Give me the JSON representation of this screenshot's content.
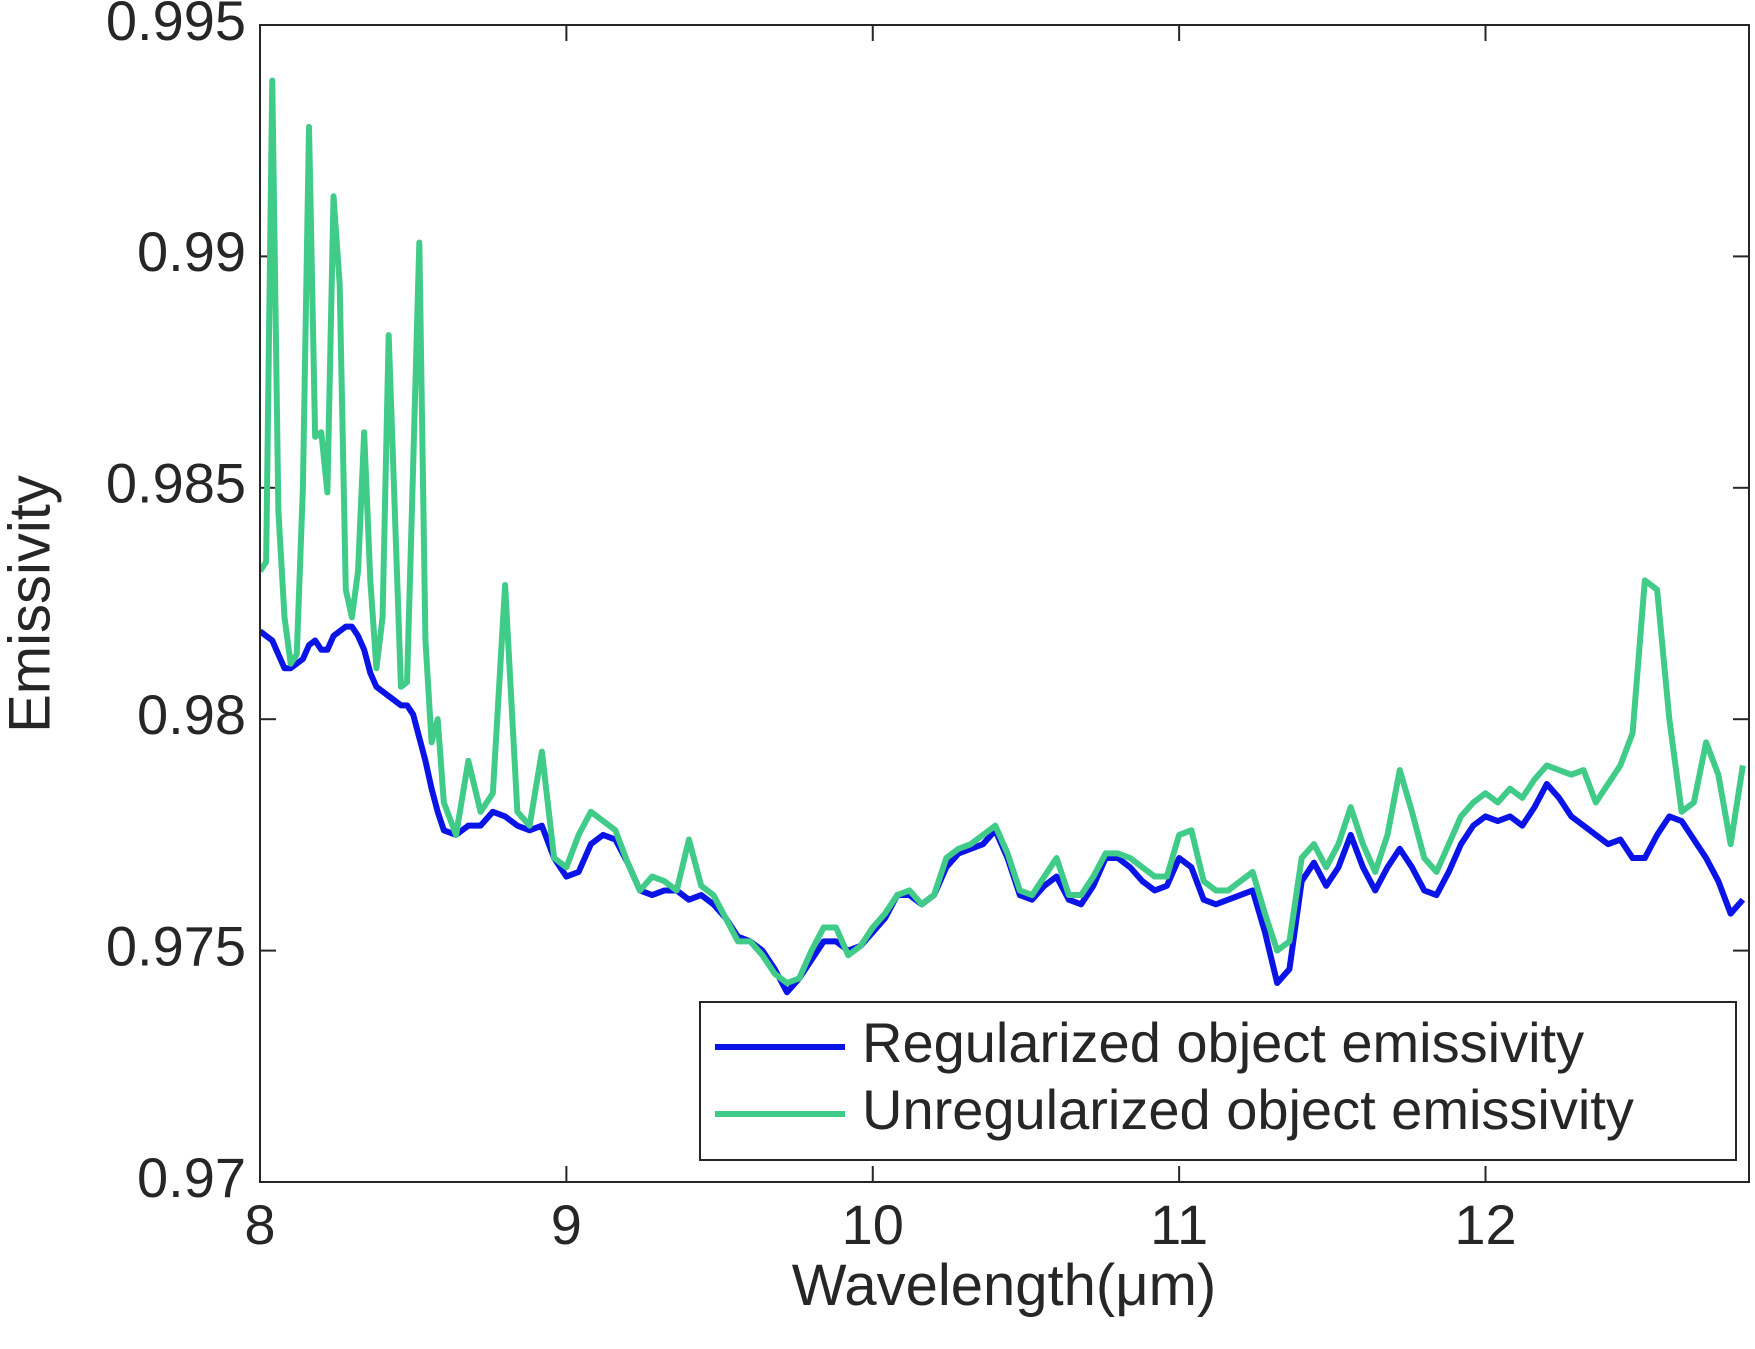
{
  "chart_data": {
    "type": "line",
    "x_label": "Wavelength(μm)",
    "y_label": "Emissivity",
    "x": [
      8.0,
      8.02,
      8.04,
      8.06,
      8.08,
      8.1,
      8.12,
      8.14,
      8.16,
      8.18,
      8.2,
      8.22,
      8.24,
      8.26,
      8.28,
      8.3,
      8.32,
      8.34,
      8.36,
      8.38,
      8.4,
      8.42,
      8.44,
      8.46,
      8.48,
      8.5,
      8.52,
      8.54,
      8.56,
      8.58,
      8.6,
      8.64,
      8.68,
      8.72,
      8.76,
      8.8,
      8.84,
      8.88,
      8.92,
      8.96,
      9.0,
      9.04,
      9.08,
      9.12,
      9.16,
      9.2,
      9.24,
      9.28,
      9.32,
      9.36,
      9.4,
      9.44,
      9.48,
      9.52,
      9.56,
      9.6,
      9.64,
      9.68,
      9.72,
      9.76,
      9.8,
      9.84,
      9.88,
      9.92,
      9.96,
      10.0,
      10.04,
      10.08,
      10.12,
      10.16,
      10.2,
      10.24,
      10.28,
      10.32,
      10.36,
      10.4,
      10.44,
      10.48,
      10.52,
      10.56,
      10.6,
      10.64,
      10.68,
      10.72,
      10.76,
      10.8,
      10.84,
      10.88,
      10.92,
      10.96,
      11.0,
      11.04,
      11.08,
      11.12,
      11.16,
      11.2,
      11.24,
      11.28,
      11.32,
      11.36,
      11.4,
      11.44,
      11.48,
      11.52,
      11.56,
      11.6,
      11.64,
      11.68,
      11.72,
      11.76,
      11.8,
      11.84,
      11.88,
      11.92,
      11.96,
      12.0,
      12.04,
      12.08,
      12.12,
      12.16,
      12.2,
      12.24,
      12.28,
      12.32,
      12.36,
      12.4,
      12.44,
      12.48,
      12.52,
      12.56,
      12.6,
      12.64,
      12.68,
      12.72,
      12.76,
      12.8,
      12.84
    ],
    "series": [
      {
        "name": "Regularized object emissivity",
        "color": "#0a14e6",
        "values": [
          0.9819,
          0.9818,
          0.9817,
          0.9814,
          0.9811,
          0.9811,
          0.9812,
          0.9813,
          0.9816,
          0.9817,
          0.9815,
          0.9815,
          0.9818,
          0.9819,
          0.982,
          0.982,
          0.9818,
          0.9815,
          0.981,
          0.9807,
          0.9806,
          0.9805,
          0.9804,
          0.9803,
          0.9803,
          0.9801,
          0.9796,
          0.9791,
          0.9785,
          0.978,
          0.9776,
          0.9775,
          0.9777,
          0.9777,
          0.978,
          0.9779,
          0.9777,
          0.9776,
          0.9777,
          0.977,
          0.9766,
          0.9767,
          0.9773,
          0.9775,
          0.9774,
          0.9769,
          0.9763,
          0.9762,
          0.9763,
          0.9763,
          0.9761,
          0.9762,
          0.976,
          0.9757,
          0.9753,
          0.9752,
          0.975,
          0.9746,
          0.9741,
          0.9744,
          0.9748,
          0.9752,
          0.9752,
          0.975,
          0.9751,
          0.9754,
          0.9757,
          0.9762,
          0.9762,
          0.976,
          0.9762,
          0.9768,
          0.9771,
          0.9772,
          0.9773,
          0.9776,
          0.977,
          0.9762,
          0.9761,
          0.9764,
          0.9766,
          0.9761,
          0.976,
          0.9764,
          0.977,
          0.977,
          0.9768,
          0.9765,
          0.9763,
          0.9764,
          0.977,
          0.9768,
          0.9761,
          0.976,
          0.9761,
          0.9762,
          0.9763,
          0.9754,
          0.9743,
          0.9746,
          0.9765,
          0.9769,
          0.9764,
          0.9768,
          0.9775,
          0.9768,
          0.9763,
          0.9768,
          0.9772,
          0.9768,
          0.9763,
          0.9762,
          0.9767,
          0.9773,
          0.9777,
          0.9779,
          0.9778,
          0.9779,
          0.9777,
          0.9781,
          0.9786,
          0.9783,
          0.9779,
          0.9777,
          0.9775,
          0.9773,
          0.9774,
          0.977,
          0.977,
          0.9775,
          0.9779,
          0.9778,
          0.9774,
          0.977,
          0.9765,
          0.9758,
          0.9761
        ]
      },
      {
        "name": "Unregularized object emissivity",
        "color": "#40cc88",
        "values": [
          0.9832,
          0.9834,
          0.9938,
          0.9845,
          0.9822,
          0.9812,
          0.9814,
          0.985,
          0.9928,
          0.9861,
          0.9862,
          0.9849,
          0.9913,
          0.9894,
          0.9828,
          0.9822,
          0.9832,
          0.9862,
          0.983,
          0.9811,
          0.9822,
          0.9883,
          0.9845,
          0.9807,
          0.9808,
          0.9855,
          0.9903,
          0.9817,
          0.9795,
          0.98,
          0.9782,
          0.9775,
          0.9791,
          0.978,
          0.9784,
          0.9829,
          0.978,
          0.9777,
          0.9793,
          0.977,
          0.9768,
          0.9775,
          0.978,
          0.9778,
          0.9776,
          0.9769,
          0.9763,
          0.9766,
          0.9765,
          0.9763,
          0.9774,
          0.9764,
          0.9762,
          0.9757,
          0.9752,
          0.9752,
          0.9749,
          0.9745,
          0.9743,
          0.9744,
          0.975,
          0.9755,
          0.9755,
          0.9749,
          0.9751,
          0.9755,
          0.9758,
          0.9762,
          0.9763,
          0.976,
          0.9762,
          0.977,
          0.9772,
          0.9773,
          0.9775,
          0.9777,
          0.9771,
          0.9763,
          0.9762,
          0.9766,
          0.977,
          0.9762,
          0.9762,
          0.9766,
          0.9771,
          0.9771,
          0.977,
          0.9768,
          0.9766,
          0.9766,
          0.9775,
          0.9776,
          0.9765,
          0.9763,
          0.9763,
          0.9765,
          0.9767,
          0.9758,
          0.975,
          0.9752,
          0.977,
          0.9773,
          0.9768,
          0.9773,
          0.9781,
          0.9773,
          0.9767,
          0.9775,
          0.9789,
          0.978,
          0.977,
          0.9767,
          0.9773,
          0.9779,
          0.9782,
          0.9784,
          0.9782,
          0.9785,
          0.9783,
          0.9787,
          0.979,
          0.9789,
          0.9788,
          0.9789,
          0.9782,
          0.9786,
          0.979,
          0.9797,
          0.983,
          0.9828,
          0.98,
          0.978,
          0.9782,
          0.9795,
          0.9788,
          0.9773,
          0.979
        ]
      }
    ],
    "xlim": [
      8,
      12.86
    ],
    "ylim": [
      0.97,
      0.995
    ],
    "xticks": [
      8,
      9,
      10,
      11,
      12
    ],
    "yticks": [
      0.97,
      0.975,
      0.98,
      0.985,
      0.99,
      0.995
    ],
    "legend": "lower right"
  }
}
